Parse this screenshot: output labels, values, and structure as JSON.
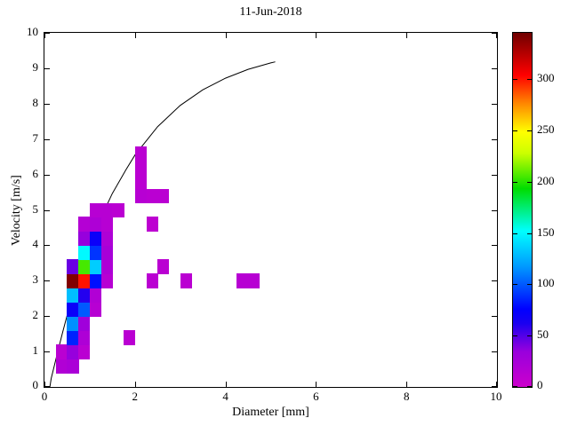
{
  "chart_data": {
    "type": "heatmap",
    "title": "11-Jun-2018",
    "xlabel": "Diameter [mm]",
    "ylabel": "Velocity [m/s]",
    "xlim": [
      0,
      10
    ],
    "ylim": [
      0,
      10
    ],
    "x_ticks": [
      0,
      2,
      4,
      6,
      8,
      10
    ],
    "y_ticks": [
      0,
      1,
      2,
      3,
      4,
      5,
      6,
      7,
      8,
      9,
      10
    ],
    "bin_width": 0.25,
    "bin_height": 0.4,
    "cells": [
      [
        0.25,
        0.4,
        18
      ],
      [
        0.5,
        0.4,
        22
      ],
      [
        0.25,
        0.8,
        12
      ],
      [
        0.5,
        0.8,
        35
      ],
      [
        0.75,
        0.8,
        12
      ],
      [
        0.5,
        1.2,
        85
      ],
      [
        0.75,
        1.2,
        20
      ],
      [
        0.5,
        1.6,
        115
      ],
      [
        0.75,
        1.6,
        30
      ],
      [
        0.5,
        2.0,
        70
      ],
      [
        0.75,
        2.0,
        100
      ],
      [
        1.0,
        2.0,
        14
      ],
      [
        0.5,
        2.4,
        130
      ],
      [
        0.75,
        2.4,
        60
      ],
      [
        1.0,
        2.4,
        18
      ],
      [
        0.5,
        2.8,
        340
      ],
      [
        0.75,
        2.8,
        300
      ],
      [
        1.0,
        2.8,
        80
      ],
      [
        1.25,
        2.8,
        14
      ],
      [
        0.5,
        3.2,
        45
      ],
      [
        0.75,
        3.2,
        205
      ],
      [
        1.0,
        3.2,
        135
      ],
      [
        1.25,
        3.2,
        20
      ],
      [
        0.75,
        3.6,
        150
      ],
      [
        1.0,
        3.6,
        90
      ],
      [
        1.25,
        3.6,
        25
      ],
      [
        0.75,
        4.0,
        35
      ],
      [
        1.0,
        4.0,
        70
      ],
      [
        1.25,
        4.0,
        20
      ],
      [
        0.75,
        4.4,
        16
      ],
      [
        1.0,
        4.4,
        20
      ],
      [
        1.25,
        4.4,
        14
      ],
      [
        1.0,
        4.8,
        14
      ],
      [
        1.25,
        4.8,
        14
      ],
      [
        1.5,
        4.8,
        12
      ],
      [
        1.75,
        1.2,
        12
      ],
      [
        2.0,
        5.2,
        14
      ],
      [
        2.25,
        5.2,
        12
      ],
      [
        2.5,
        5.2,
        12
      ],
      [
        2.0,
        5.6,
        12
      ],
      [
        2.0,
        6.0,
        12
      ],
      [
        2.0,
        6.4,
        12
      ],
      [
        2.25,
        4.4,
        10
      ],
      [
        2.5,
        3.2,
        12
      ],
      [
        2.25,
        2.8,
        12
      ],
      [
        3.0,
        2.8,
        12
      ],
      [
        4.25,
        2.8,
        14
      ],
      [
        4.5,
        2.8,
        14
      ]
    ],
    "colorbar": {
      "min": 0,
      "max": 345,
      "ticks": [
        0,
        50,
        100,
        150,
        200,
        250,
        300
      ],
      "stops": [
        [
          0.0,
          "#CC00CC"
        ],
        [
          0.1,
          "#9900DD"
        ],
        [
          0.18,
          "#1A00F0"
        ],
        [
          0.22,
          "#0000FF"
        ],
        [
          0.34,
          "#0099FF"
        ],
        [
          0.44,
          "#00FFFF"
        ],
        [
          0.56,
          "#00DD00"
        ],
        [
          0.66,
          "#CCFF00"
        ],
        [
          0.72,
          "#FFFF00"
        ],
        [
          0.8,
          "#FF8800"
        ],
        [
          0.88,
          "#FF0000"
        ],
        [
          1.0,
          "#700000"
        ]
      ]
    },
    "curve": {
      "name": "terminal-velocity-curve",
      "color": "#000000",
      "points": [
        [
          0.12,
          0.0
        ],
        [
          0.15,
          0.24
        ],
        [
          0.2,
          0.51
        ],
        [
          0.3,
          1.03
        ],
        [
          0.4,
          1.54
        ],
        [
          0.5,
          2.02
        ],
        [
          0.6,
          2.47
        ],
        [
          0.8,
          3.28
        ],
        [
          1.0,
          4.0
        ],
        [
          1.2,
          4.65
        ],
        [
          1.5,
          5.46
        ],
        [
          1.8,
          6.13
        ],
        [
          2.0,
          6.55
        ],
        [
          2.5,
          7.35
        ],
        [
          3.0,
          7.95
        ],
        [
          3.5,
          8.39
        ],
        [
          4.0,
          8.72
        ],
        [
          4.5,
          8.97
        ],
        [
          5.0,
          9.15
        ],
        [
          5.1,
          9.18
        ]
      ]
    }
  }
}
